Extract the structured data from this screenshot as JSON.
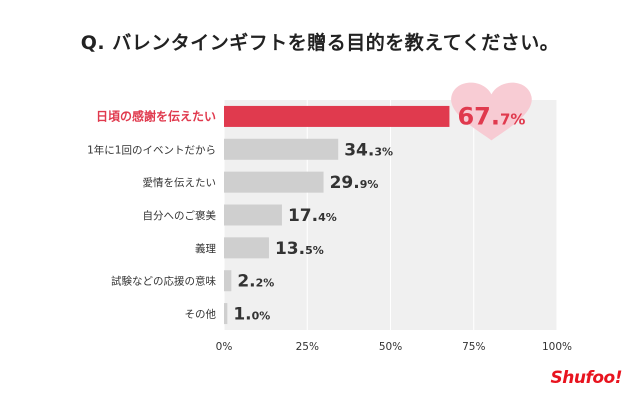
{
  "title": "Q. バレンタインギフトを贈る目的を教えてください。",
  "brand": "Shufoo!",
  "colors": {
    "highlight": "#e03a4e",
    "bar": "#cfcfcf",
    "plot_bg": "#f0f0f0",
    "heart": "#f7c6cf",
    "highlight_text": "#e03a4e",
    "label_text": "#333333"
  },
  "chart_data": {
    "type": "bar",
    "orientation": "horizontal",
    "title": "Q. バレンタインギフトを贈る目的を教えてください。",
    "categories": [
      "日頃の感謝を伝えたい",
      "1年に1回のイベントだから",
      "愛情を伝えたい",
      "自分へのご褒美",
      "義理",
      "試験などの応援の意味",
      "その他"
    ],
    "values": [
      67.7,
      34.3,
      29.9,
      17.4,
      13.5,
      2.2,
      1.0
    ],
    "value_labels": [
      {
        "int": "67.",
        "dec": "7%"
      },
      {
        "int": "34.",
        "dec": "3%"
      },
      {
        "int": "29.",
        "dec": "9%"
      },
      {
        "int": "17.",
        "dec": "4%"
      },
      {
        "int": "13.",
        "dec": "5%"
      },
      {
        "int": "2.",
        "dec": "2%"
      },
      {
        "int": "1.",
        "dec": "0%"
      }
    ],
    "highlight_index": 0,
    "xlim": [
      0,
      100
    ],
    "xticks": [
      0,
      25,
      50,
      75,
      100
    ],
    "xtick_labels": [
      "0%",
      "25%",
      "50%",
      "75%",
      "100%"
    ],
    "grid": true
  }
}
